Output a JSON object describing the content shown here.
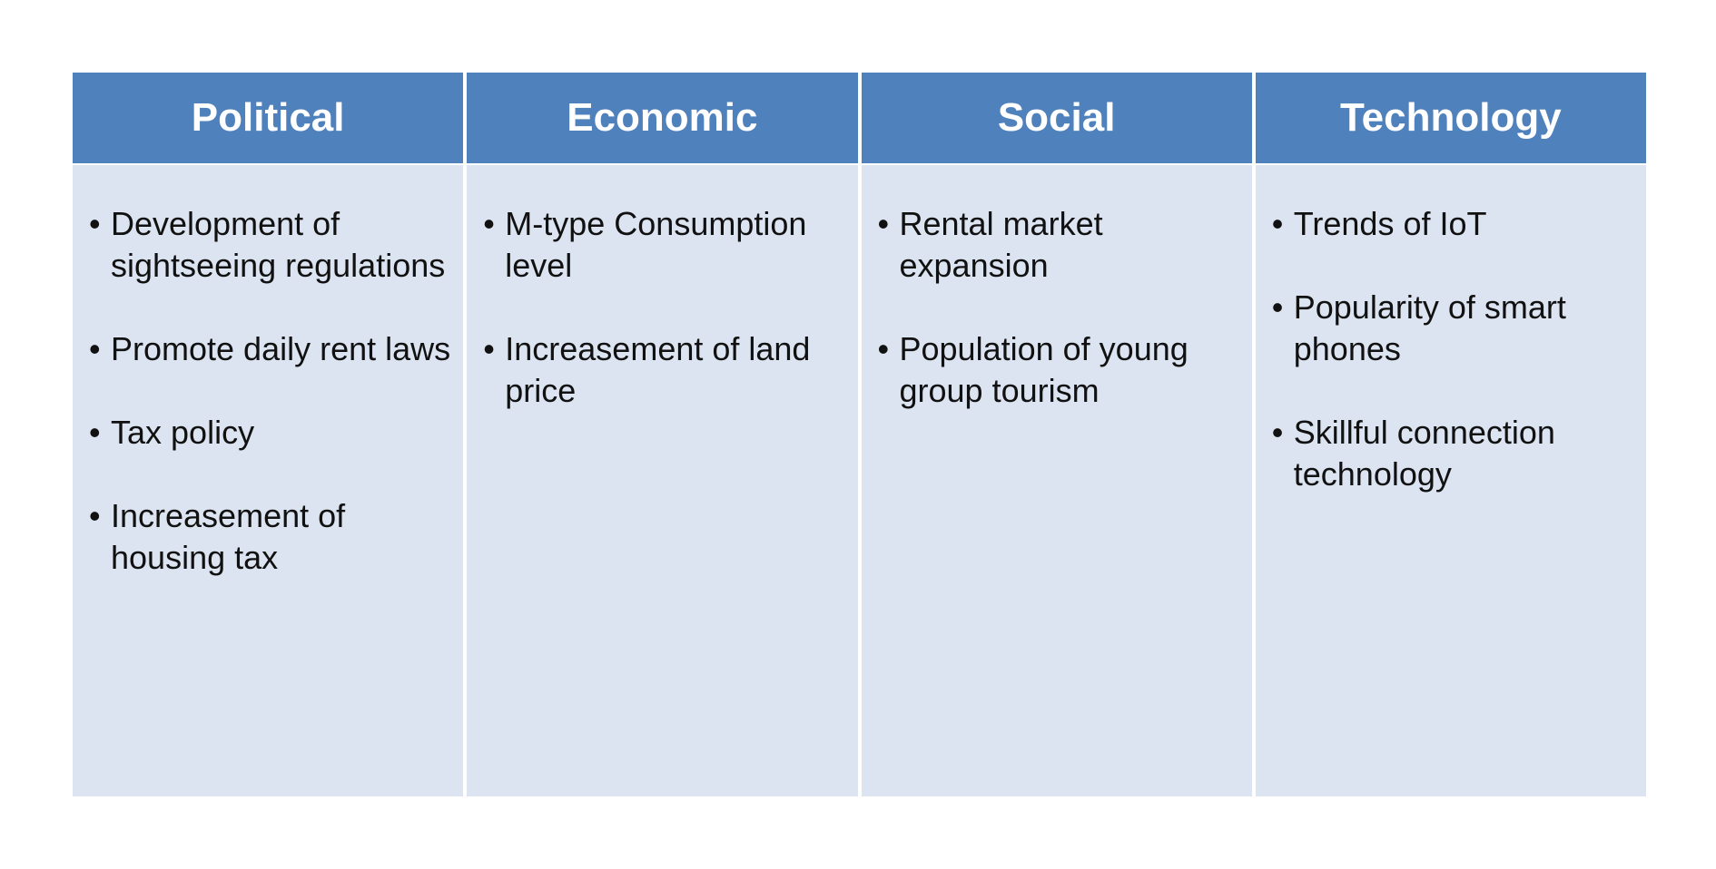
{
  "colors": {
    "header_bg": "#4F81BD",
    "body_bg": "#DBE4F0",
    "header_text": "#FFFFFF",
    "body_text": "#111111"
  },
  "columns": [
    {
      "title": "Political",
      "items": [
        "Development of sightseeing regulations",
        "Promote daily rent laws",
        "Tax policy",
        "Increasement of housing tax"
      ]
    },
    {
      "title": "Economic",
      "items": [
        "M-type Consumption level",
        "Increasement of land price"
      ]
    },
    {
      "title": "Social",
      "items": [
        "Rental market expansion",
        "Population of young group tourism"
      ]
    },
    {
      "title": "Technology",
      "items": [
        "Trends of IoT",
        "Popularity of smart phones",
        "Skillful connection technology"
      ]
    }
  ]
}
